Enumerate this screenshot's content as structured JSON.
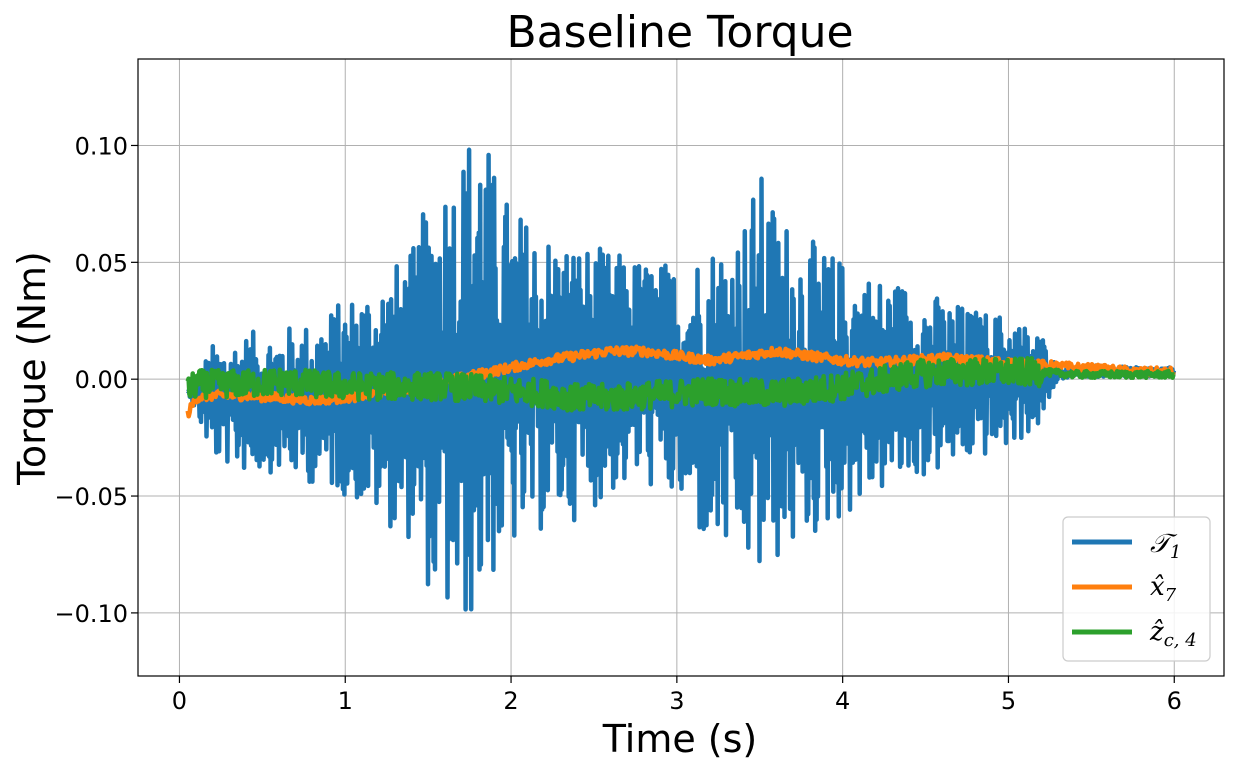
{
  "chart_data": {
    "type": "line",
    "title": "Baseline Torque",
    "xlabel": "Time (s)",
    "ylabel": "Torque (Nm)",
    "xlim": [
      -0.25,
      6.3
    ],
    "ylim": [
      -0.127,
      0.137
    ],
    "x_ticks": [
      0,
      1,
      2,
      3,
      4,
      5,
      6
    ],
    "x_tick_labels": [
      "0",
      "1",
      "2",
      "3",
      "4",
      "5",
      "6"
    ],
    "y_ticks": [
      -0.1,
      -0.05,
      0.0,
      0.05,
      0.1
    ],
    "y_tick_labels": [
      "−0.10",
      "−0.05",
      "0.00",
      "0.05",
      "0.10"
    ],
    "grid": true,
    "legend_position": "bottom-right",
    "series": [
      {
        "name": "𝒯",
        "subscript": "1",
        "color": "#1f77b4",
        "x": [
          0.05,
          0.2,
          0.4,
          0.6,
          0.8,
          1.0,
          1.2,
          1.4,
          1.55,
          1.7,
          1.8,
          1.9,
          2.0,
          2.2,
          2.4,
          2.6,
          2.8,
          3.0,
          3.2,
          3.4,
          3.5,
          3.6,
          3.8,
          4.0,
          4.2,
          4.4,
          4.6,
          4.8,
          5.0,
          5.2,
          5.3,
          5.5,
          5.8,
          6.0
        ],
        "upper": [
          -0.005,
          0.015,
          0.02,
          0.022,
          0.025,
          0.035,
          0.045,
          0.055,
          0.09,
          0.1,
          0.12,
          0.09,
          0.075,
          0.065,
          0.06,
          0.055,
          0.052,
          0.05,
          0.06,
          0.07,
          0.09,
          0.075,
          0.06,
          0.052,
          0.045,
          0.042,
          0.035,
          0.03,
          0.028,
          0.02,
          0.005,
          0.006,
          0.005,
          0.005
        ],
        "lower": [
          -0.005,
          -0.035,
          -0.04,
          -0.04,
          -0.045,
          -0.05,
          -0.06,
          -0.07,
          -0.1,
          -0.11,
          -0.1,
          -0.085,
          -0.075,
          -0.065,
          -0.06,
          -0.05,
          -0.045,
          -0.055,
          -0.075,
          -0.08,
          -0.09,
          -0.08,
          -0.07,
          -0.06,
          -0.05,
          -0.045,
          -0.04,
          -0.035,
          -0.03,
          -0.02,
          0.0,
          0.001,
          0.001,
          0.001
        ]
      },
      {
        "name": "x̂",
        "subscript": "7",
        "color": "#ff7f0e",
        "x": [
          0.05,
          0.1,
          0.2,
          0.4,
          0.6,
          0.8,
          1.0,
          1.2,
          1.4,
          1.6,
          1.8,
          2.0,
          2.2,
          2.4,
          2.6,
          2.8,
          3.0,
          3.2,
          3.4,
          3.6,
          3.8,
          4.0,
          4.2,
          4.4,
          4.6,
          4.8,
          5.0,
          5.2,
          5.4,
          5.6,
          5.8,
          6.0
        ],
        "values": [
          -0.015,
          -0.008,
          -0.007,
          -0.007,
          -0.008,
          -0.009,
          -0.008,
          -0.006,
          -0.004,
          -0.001,
          0.002,
          0.005,
          0.008,
          0.01,
          0.012,
          0.012,
          0.01,
          0.008,
          0.01,
          0.012,
          0.01,
          0.008,
          0.007,
          0.008,
          0.009,
          0.008,
          0.007,
          0.006,
          0.005,
          0.004,
          0.003,
          0.003
        ]
      },
      {
        "name": "ẑ",
        "subscript": "c, 4",
        "color": "#2ca02c",
        "x": [
          0.05,
          0.1,
          0.2,
          0.4,
          0.6,
          0.8,
          1.0,
          1.2,
          1.4,
          1.6,
          1.8,
          2.0,
          2.2,
          2.4,
          2.6,
          2.8,
          3.0,
          3.2,
          3.4,
          3.6,
          3.8,
          4.0,
          4.2,
          4.4,
          4.6,
          4.8,
          5.0,
          5.2,
          5.4,
          5.6,
          5.8,
          6.0
        ],
        "values": [
          -0.005,
          -0.002,
          -0.002,
          -0.002,
          -0.001,
          -0.002,
          -0.003,
          -0.003,
          -0.003,
          -0.003,
          -0.004,
          -0.005,
          -0.006,
          -0.008,
          -0.008,
          -0.007,
          -0.006,
          -0.005,
          -0.006,
          -0.006,
          -0.005,
          -0.003,
          -0.001,
          0.002,
          0.003,
          0.003,
          0.003,
          0.003,
          0.002,
          0.002,
          0.002,
          0.002
        ],
        "noise": 0.006
      }
    ]
  }
}
